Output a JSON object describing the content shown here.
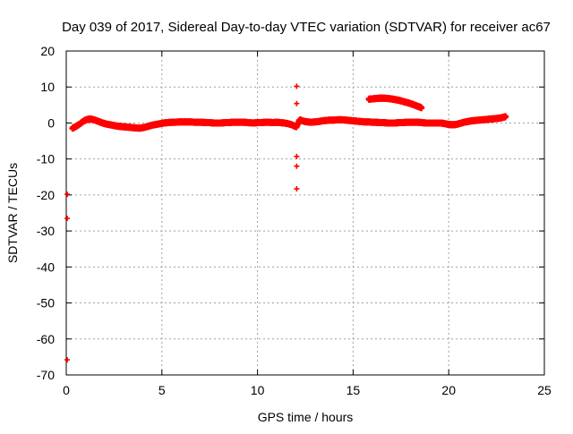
{
  "chart_data": {
    "type": "scatter",
    "title": "Day 039 of 2017, Sidereal Day-to-day VTEC variation (SDTVAR) for receiver ac67",
    "xlabel": "GPS time / hours",
    "ylabel": "SDTVAR / TECUs",
    "xlim": [
      0,
      25
    ],
    "ylim": [
      -70,
      20
    ],
    "xticks": [
      0,
      5,
      10,
      15,
      20,
      25
    ],
    "yticks": [
      20,
      10,
      0,
      -10,
      -20,
      -30,
      -40,
      -50,
      -60,
      -70
    ],
    "grid": true,
    "marker": "+",
    "series": [
      {
        "name": "SDTVAR",
        "color": "#ff0000",
        "points": [
          [
            0.05,
            -19.8
          ],
          [
            0.05,
            -26.5
          ],
          [
            0.05,
            -65.8
          ],
          [
            0.3,
            -1.5
          ],
          [
            0.5,
            -1.0
          ],
          [
            0.7,
            -0.3
          ],
          [
            0.9,
            0.5
          ],
          [
            1.1,
            1.0
          ],
          [
            1.3,
            1.1
          ],
          [
            1.5,
            0.8
          ],
          [
            1.7,
            0.4
          ],
          [
            1.9,
            0.0
          ],
          [
            2.1,
            -0.3
          ],
          [
            2.3,
            -0.5
          ],
          [
            2.5,
            -0.7
          ],
          [
            2.7,
            -0.9
          ],
          [
            2.9,
            -1.0
          ],
          [
            3.1,
            -1.1
          ],
          [
            3.3,
            -1.2
          ],
          [
            3.5,
            -1.3
          ],
          [
            3.7,
            -1.4
          ],
          [
            3.9,
            -1.4
          ],
          [
            4.1,
            -1.2
          ],
          [
            4.3,
            -0.9
          ],
          [
            4.5,
            -0.6
          ],
          [
            4.7,
            -0.4
          ],
          [
            4.9,
            -0.2
          ],
          [
            5.1,
            0.0
          ],
          [
            5.3,
            0.1
          ],
          [
            5.5,
            0.2
          ],
          [
            5.7,
            0.2
          ],
          [
            5.9,
            0.3
          ],
          [
            6.1,
            0.3
          ],
          [
            6.3,
            0.3
          ],
          [
            6.5,
            0.3
          ],
          [
            6.7,
            0.2
          ],
          [
            6.9,
            0.2
          ],
          [
            7.1,
            0.2
          ],
          [
            7.3,
            0.1
          ],
          [
            7.5,
            0.1
          ],
          [
            7.7,
            0.0
          ],
          [
            7.9,
            0.0
          ],
          [
            8.1,
            0.0
          ],
          [
            8.3,
            0.1
          ],
          [
            8.5,
            0.1
          ],
          [
            8.7,
            0.2
          ],
          [
            8.9,
            0.2
          ],
          [
            9.1,
            0.2
          ],
          [
            9.3,
            0.2
          ],
          [
            9.5,
            0.1
          ],
          [
            9.8,
            0.0
          ],
          [
            10.0,
            0.1
          ],
          [
            10.2,
            0.1
          ],
          [
            10.4,
            0.2
          ],
          [
            10.6,
            0.2
          ],
          [
            10.8,
            0.1
          ],
          [
            11.0,
            0.2
          ],
          [
            11.2,
            0.1
          ],
          [
            11.4,
            0.0
          ],
          [
            11.6,
            -0.2
          ],
          [
            11.8,
            -0.5
          ],
          [
            12.0,
            -1.0
          ],
          [
            12.2,
            0.9
          ],
          [
            12.4,
            0.5
          ],
          [
            12.6,
            0.3
          ],
          [
            12.8,
            0.2
          ],
          [
            13.0,
            0.3
          ],
          [
            13.2,
            0.4
          ],
          [
            13.4,
            0.6
          ],
          [
            13.6,
            0.7
          ],
          [
            13.8,
            0.8
          ],
          [
            14.0,
            0.8
          ],
          [
            14.2,
            0.9
          ],
          [
            14.4,
            0.9
          ],
          [
            14.6,
            0.8
          ],
          [
            14.8,
            0.7
          ],
          [
            15.0,
            0.6
          ],
          [
            15.2,
            0.5
          ],
          [
            15.4,
            0.4
          ],
          [
            15.6,
            0.3
          ],
          [
            15.8,
            0.3
          ],
          [
            16.0,
            0.2
          ],
          [
            16.2,
            0.2
          ],
          [
            16.4,
            0.1
          ],
          [
            16.6,
            0.1
          ],
          [
            16.8,
            0.0
          ],
          [
            17.0,
            0.0
          ],
          [
            17.2,
            0.0
          ],
          [
            17.4,
            0.1
          ],
          [
            17.6,
            0.1
          ],
          [
            17.8,
            0.2
          ],
          [
            18.0,
            0.2
          ],
          [
            18.2,
            0.2
          ],
          [
            18.4,
            0.2
          ],
          [
            18.6,
            0.1
          ],
          [
            18.8,
            0.0
          ],
          [
            19.0,
            0.0
          ],
          [
            19.2,
            0.0
          ],
          [
            19.4,
            0.0
          ],
          [
            19.6,
            0.0
          ],
          [
            19.8,
            -0.2
          ],
          [
            20.0,
            -0.4
          ],
          [
            20.2,
            -0.5
          ],
          [
            20.4,
            -0.4
          ],
          [
            20.6,
            -0.1
          ],
          [
            20.8,
            0.2
          ],
          [
            21.0,
            0.4
          ],
          [
            21.2,
            0.6
          ],
          [
            21.4,
            0.7
          ],
          [
            21.6,
            0.8
          ],
          [
            21.8,
            0.9
          ],
          [
            22.0,
            1.0
          ],
          [
            22.2,
            1.1
          ],
          [
            22.4,
            1.2
          ],
          [
            22.6,
            1.3
          ],
          [
            22.8,
            1.5
          ],
          [
            23.0,
            1.8
          ],
          [
            12.05,
            10.2
          ],
          [
            12.05,
            5.4
          ],
          [
            12.05,
            -1.0
          ],
          [
            12.05,
            -9.3
          ],
          [
            12.05,
            -12.0
          ],
          [
            12.05,
            -18.3
          ],
          [
            15.8,
            6.6
          ],
          [
            16.0,
            6.7
          ],
          [
            16.2,
            6.8
          ],
          [
            16.4,
            6.9
          ],
          [
            16.6,
            6.9
          ],
          [
            16.8,
            6.8
          ],
          [
            17.0,
            6.7
          ],
          [
            17.2,
            6.5
          ],
          [
            17.4,
            6.3
          ],
          [
            17.6,
            6.0
          ],
          [
            17.8,
            5.7
          ],
          [
            18.0,
            5.4
          ],
          [
            18.2,
            5.0
          ],
          [
            18.4,
            4.6
          ],
          [
            18.6,
            4.2
          ]
        ]
      }
    ]
  }
}
